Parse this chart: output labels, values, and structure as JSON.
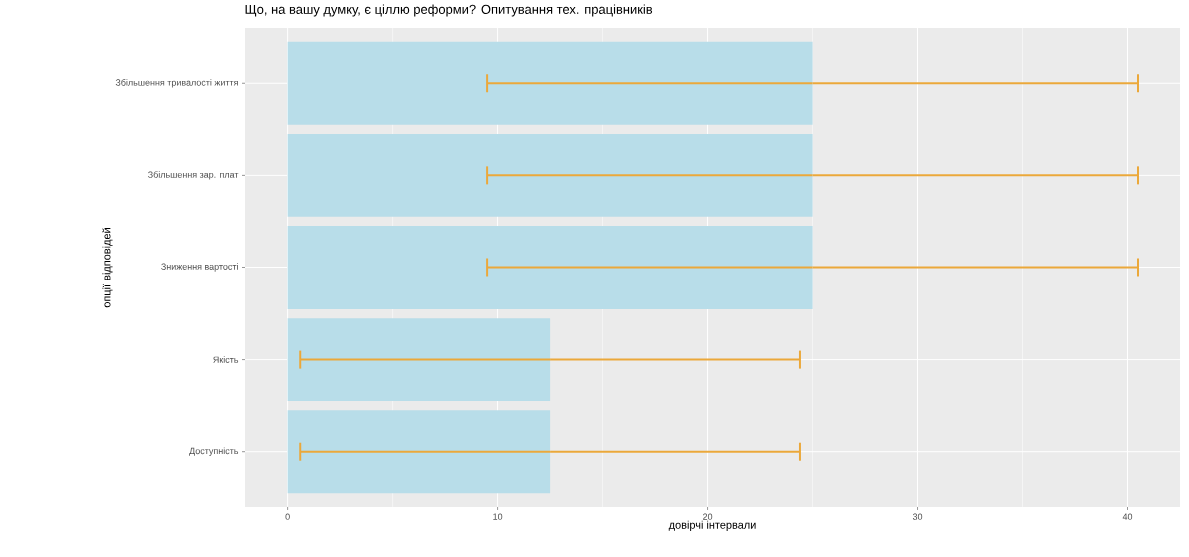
{
  "chart_data": {
    "type": "bar",
    "orientation": "horizontal",
    "title": "Що, на вашу думку, є ціллю реформи? Опитування тех. працівників",
    "xlabel": "довірчі інтервали",
    "ylabel": "опції відповідей",
    "categories": [
      "Збільшення тривалості життя",
      "Збільшення зар. плат",
      "Зниження вартості",
      "Якість",
      "Доступність"
    ],
    "values": [
      25,
      25,
      25,
      12.5,
      12.5
    ],
    "errors": [
      15.5,
      15.5,
      15.5,
      11.9,
      11.9
    ],
    "color": "#b8dde9",
    "xlim": [
      -2.03,
      42.5
    ],
    "xticks": [
      0,
      10,
      20,
      30,
      40
    ],
    "grid": true
  }
}
